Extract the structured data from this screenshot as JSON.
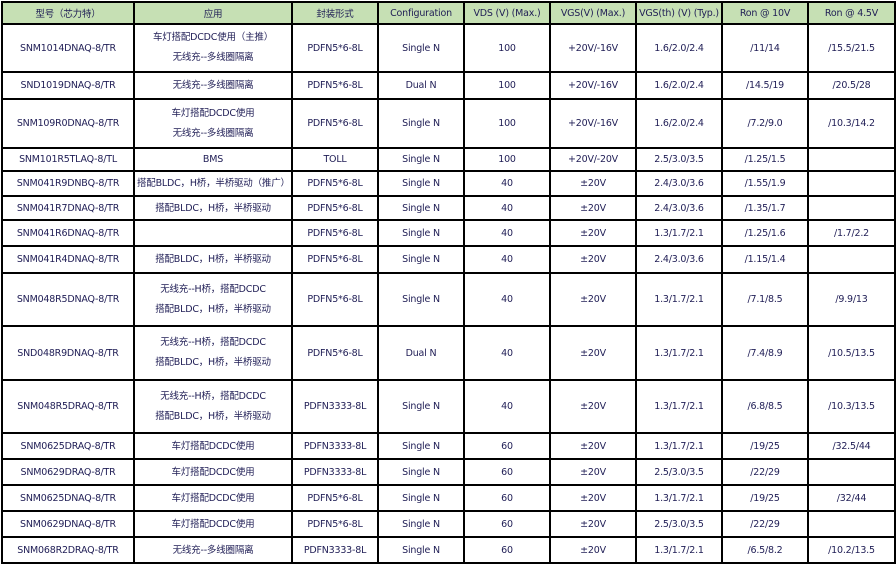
{
  "header_bg": "#c6e0b4",
  "columns": [
    "型号（芯力特）",
    "应用",
    "封装形式",
    "Configuration",
    "VDS (V) (Max.)",
    "VGS(V) (Max.)",
    "VGS(th) (V) (Typ.)",
    "Ron @ 10V",
    "Ron @ 4.5V"
  ],
  "rows": [
    {
      "model": "SNM1014DNAQ-8/TR",
      "app": [
        "车灯搭配DCDC使用（主推）",
        "无线充--多线圈隔离"
      ],
      "package": "PDFN5*6-8L",
      "config": "Single N",
      "vds": "100",
      "vgs": "+20V/-16V",
      "vgsth": "1.6/2.0/2.4",
      "ron10": "/11/14",
      "ron45": "/15.5/21.5"
    },
    {
      "model": "SND1019DNAQ-8/TR",
      "app": [
        "无线充--多线圈隔离"
      ],
      "package": "PDFN5*6-8L",
      "config": "Dual N",
      "vds": "100",
      "vgs": "+20V/-16V",
      "vgsth": "1.6/2.0/2.4",
      "ron10": "/14.5/19",
      "ron45": "/20.5/28"
    },
    {
      "model": "SNM109R0DNAQ-8/TR",
      "app": [
        "车灯搭配DCDC使用",
        "无线充--多线圈隔离"
      ],
      "package": "PDFN5*6-8L",
      "config": "Single N",
      "vds": "100",
      "vgs": "+20V/-16V",
      "vgsth": "1.6/2.0/2.4",
      "ron10": "/7.2/9.0",
      "ron45": "/10.3/14.2"
    },
    {
      "model": "SNM101R5TLAQ-8/TL",
      "app": [
        "BMS"
      ],
      "package": "TOLL",
      "config": "Single N",
      "vds": "100",
      "vgs": "+20V/-20V",
      "vgsth": "2.5/3.0/3.5",
      "ron10": "/1.25/1.5",
      "ron45": ""
    },
    {
      "model": "SNM041R9DNBQ-8/TR",
      "app": [
        "搭配BLDC，H桥，半桥驱动（推广）"
      ],
      "package": "PDFN5*6-8L",
      "config": "Single N",
      "vds": "40",
      "vgs": "±20V",
      "vgsth": "2.4/3.0/3.6",
      "ron10": "/1.55/1.9",
      "ron45": ""
    },
    {
      "model": "SNM041R7DNAQ-8/TR",
      "app": [
        "搭配BLDC，H桥，半桥驱动"
      ],
      "package": "PDFN5*6-8L",
      "config": "Single N",
      "vds": "40",
      "vgs": "±20V",
      "vgsth": "2.4/3.0/3.6",
      "ron10": "/1.35/1.7",
      "ron45": ""
    },
    {
      "model": "SNM041R6DNAQ-8/TR",
      "app": [],
      "package": "PDFN5*6-8L",
      "config": "Single N",
      "vds": "40",
      "vgs": "±20V",
      "vgsth": "1.3/1.7/2.1",
      "ron10": "/1.25/1.6",
      "ron45": "/1.7/2.2"
    },
    {
      "model": "SNM041R4DNAQ-8/TR",
      "app": [
        "搭配BLDC，H桥，半桥驱动"
      ],
      "package": "PDFN5*6-8L",
      "config": "Single N",
      "vds": "40",
      "vgs": "±20V",
      "vgsth": "2.4/3.0/3.6",
      "ron10": "/1.15/1.4",
      "ron45": ""
    },
    {
      "model": "SNM048R5DNAQ-8/TR",
      "app": [
        "无线充--H桥，搭配DCDC",
        "搭配BLDC，H桥，半桥驱动"
      ],
      "package": "PDFN5*6-8L",
      "config": "Single N",
      "vds": "40",
      "vgs": "±20V",
      "vgsth": "1.3/1.7/2.1",
      "ron10": "/7.1/8.5",
      "ron45": "/9.9/13"
    },
    {
      "model": "SND048R9DNAQ-8/TR",
      "app": [
        "无线充--H桥，搭配DCDC",
        "搭配BLDC，H桥，半桥驱动"
      ],
      "package": "PDFN5*6-8L",
      "config": "Dual N",
      "vds": "40",
      "vgs": "±20V",
      "vgsth": "1.3/1.7/2.1",
      "ron10": "/7.4/8.9",
      "ron45": "/10.5/13.5"
    },
    {
      "model": "SNM048R5DRAQ-8/TR",
      "app": [
        "无线充--H桥，搭配DCDC",
        "搭配BLDC，H桥，半桥驱动"
      ],
      "package": "PDFN3333-8L",
      "config": "Single N",
      "vds": "40",
      "vgs": "±20V",
      "vgsth": "1.3/1.7/2.1",
      "ron10": "/6.8/8.5",
      "ron45": "/10.3/13.5"
    },
    {
      "model": "SNM0625DRAQ-8/TR",
      "app": [
        "车灯搭配DCDC使用"
      ],
      "package": "PDFN3333-8L",
      "config": "Single N",
      "vds": "60",
      "vgs": "±20V",
      "vgsth": "1.3/1.7/2.1",
      "ron10": "/19/25",
      "ron45": "/32.5/44"
    },
    {
      "model": "SNM0629DRAQ-8/TR",
      "app": [
        "车灯搭配DCDC使用"
      ],
      "package": "PDFN3333-8L",
      "config": "Single N",
      "vds": "60",
      "vgs": "±20V",
      "vgsth": "2.5/3.0/3.5",
      "ron10": "/22/29",
      "ron45": ""
    },
    {
      "model": "SNM0625DNAQ-8/TR",
      "app": [
        "车灯搭配DCDC使用"
      ],
      "package": "PDFN5*6-8L",
      "config": "Single N",
      "vds": "60",
      "vgs": "±20V",
      "vgsth": "1.3/1.7/2.1",
      "ron10": "/19/25",
      "ron45": "/32/44"
    },
    {
      "model": "SNM0629DNAQ-8/TR",
      "app": [
        "车灯搭配DCDC使用"
      ],
      "package": "PDFN5*6-8L",
      "config": "Single N",
      "vds": "60",
      "vgs": "±20V",
      "vgsth": "2.5/3.0/3.5",
      "ron10": "/22/29",
      "ron45": ""
    },
    {
      "model": "SNM068R2DRAQ-8/TR",
      "app": [
        "无线充--多线圈隔离"
      ],
      "package": "PDFN3333-8L",
      "config": "Single N",
      "vds": "60",
      "vgs": "±20V",
      "vgsth": "1.3/1.7/2.1",
      "ron10": "/6.5/8.2",
      "ron45": "/10.2/13.5"
    }
  ]
}
